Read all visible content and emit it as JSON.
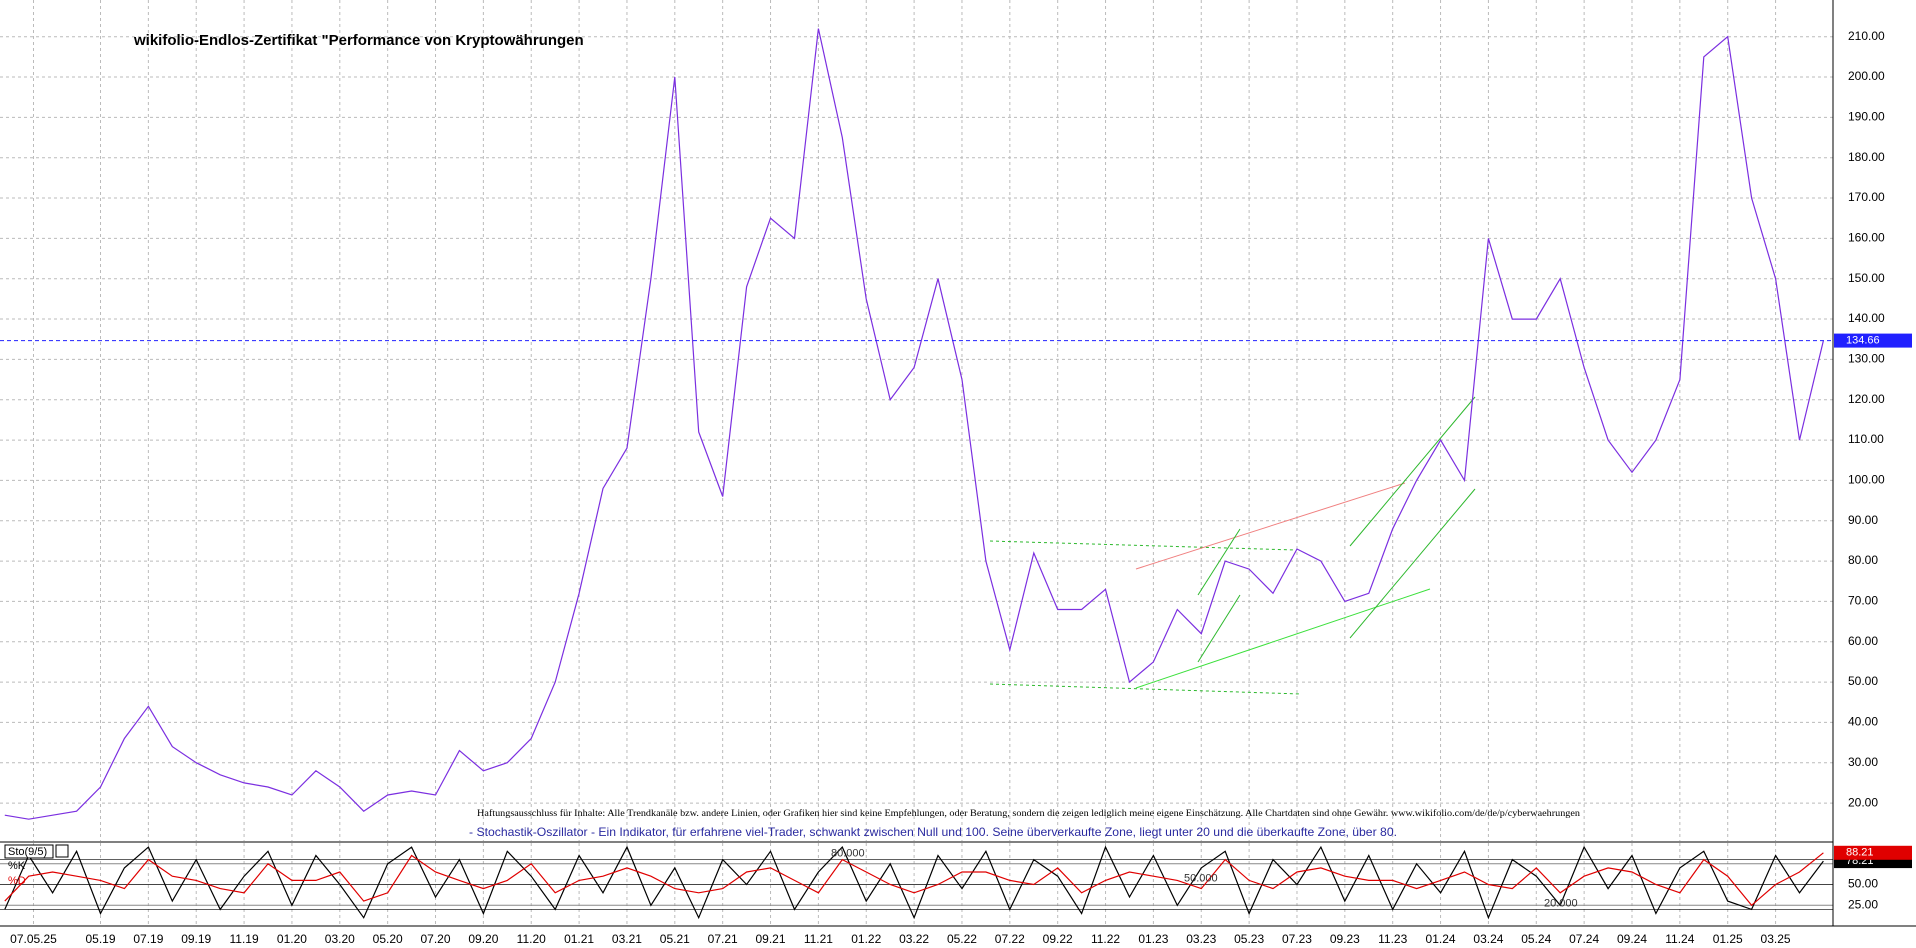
{
  "chart_data": [
    {
      "type": "line",
      "title": "wikifolio-Endlos-Zertifikat \"Performance von Kryptowährungen",
      "x": [
        -4,
        -3,
        -2,
        -1,
        0,
        1,
        2,
        3,
        4,
        5,
        6,
        7,
        8,
        9,
        10,
        11,
        12,
        13,
        14,
        15,
        16,
        17,
        18,
        19,
        20,
        21,
        22,
        23,
        24,
        25,
        26,
        27,
        28,
        29,
        30,
        31,
        32,
        33,
        34,
        35,
        36,
        37,
        38,
        39,
        40,
        41,
        42,
        43,
        44,
        45,
        46,
        47,
        48,
        49,
        50,
        51,
        52,
        53,
        54,
        55,
        56,
        57,
        58,
        59,
        60,
        61,
        62,
        63,
        64,
        65,
        66,
        67,
        68,
        69,
        70,
        71,
        72
      ],
      "series": [
        {
          "color": "#7b2fe0",
          "values": [
            17,
            16,
            17,
            18,
            24,
            36,
            44,
            34,
            30,
            27,
            25,
            24,
            22,
            28,
            24,
            18,
            22,
            23,
            22,
            33,
            28,
            30,
            36,
            50,
            72,
            98,
            108,
            150,
            200,
            112,
            96,
            148,
            165,
            160,
            212,
            185,
            145,
            120,
            128,
            150,
            125,
            80,
            58,
            82,
            68,
            68,
            73,
            50,
            55,
            68,
            62,
            80,
            78,
            72,
            83,
            80,
            70,
            72,
            88,
            100,
            110,
            100,
            160,
            140,
            140,
            150,
            128,
            110,
            102,
            110,
            125,
            205,
            210,
            170,
            150,
            110,
            134.66
          ]
        }
      ],
      "xlim": [
        -4.2,
        72.4
      ],
      "xticks": [
        {
          "value": -2.8,
          "label": "07.05.25"
        },
        {
          "value": 0,
          "label": "05.19"
        },
        {
          "value": 2,
          "label": "07.19"
        },
        {
          "value": 4,
          "label": "09.19"
        },
        {
          "value": 6,
          "label": "11.19"
        },
        {
          "value": 8,
          "label": "01.20"
        },
        {
          "value": 10,
          "label": "03.20"
        },
        {
          "value": 12,
          "label": "05.20"
        },
        {
          "value": 14,
          "label": "07.20"
        },
        {
          "value": 16,
          "label": "09.20"
        },
        {
          "value": 18,
          "label": "11.20"
        },
        {
          "value": 20,
          "label": "01.21"
        },
        {
          "value": 22,
          "label": "03.21"
        },
        {
          "value": 24,
          "label": "05.21"
        },
        {
          "value": 26,
          "label": "07.21"
        },
        {
          "value": 28,
          "label": "09.21"
        },
        {
          "value": 30,
          "label": "11.21"
        },
        {
          "value": 32,
          "label": "01.22"
        },
        {
          "value": 34,
          "label": "03.22"
        },
        {
          "value": 36,
          "label": "05.22"
        },
        {
          "value": 38,
          "label": "07.22"
        },
        {
          "value": 40,
          "label": "09.22"
        },
        {
          "value": 42,
          "label": "11.22"
        },
        {
          "value": 44,
          "label": "01.23"
        },
        {
          "value": 46,
          "label": "03.23"
        },
        {
          "value": 48,
          "label": "05.23"
        },
        {
          "value": 50,
          "label": "07.23"
        },
        {
          "value": 52,
          "label": "09.23"
        },
        {
          "value": 54,
          "label": "11.23"
        },
        {
          "value": 56,
          "label": "01.24"
        },
        {
          "value": 58,
          "label": "03.24"
        },
        {
          "value": 60,
          "label": "05.24"
        },
        {
          "value": 62,
          "label": "07.24"
        },
        {
          "value": 64,
          "label": "09.24"
        },
        {
          "value": 66,
          "label": "11.24"
        },
        {
          "value": 68,
          "label": "01.25"
        },
        {
          "value": 70,
          "label": "03.25"
        }
      ],
      "ylim": [
        10.6,
        219.1
      ],
      "yticks": [
        {
          "value": 20,
          "label": "20.00"
        },
        {
          "value": 30,
          "label": "30.00"
        },
        {
          "value": 40,
          "label": "40.00"
        },
        {
          "value": 50,
          "label": "50.00"
        },
        {
          "value": 60,
          "label": "60.00"
        },
        {
          "value": 70,
          "label": "70.00"
        },
        {
          "value": 80,
          "label": "80.00"
        },
        {
          "value": 90,
          "label": "90.00"
        },
        {
          "value": 100,
          "label": "100.00"
        },
        {
          "value": 110,
          "label": "110.00"
        },
        {
          "value": 120,
          "label": "120.00"
        },
        {
          "value": 130,
          "label": "130.00"
        },
        {
          "value": 140,
          "label": "140.00"
        },
        {
          "value": 150,
          "label": "150.00"
        },
        {
          "value": 160,
          "label": "160.00"
        },
        {
          "value": 170,
          "label": "170.00"
        },
        {
          "value": 180,
          "label": "180.00"
        },
        {
          "value": 190,
          "label": "190.00"
        },
        {
          "value": 200,
          "label": "200.00"
        },
        {
          "value": 210,
          "label": "210.00"
        }
      ],
      "grid": true,
      "annotations": [
        "Haftungsausschluss für Inhalte: Alle Trendkanäle bzw. andere Linien, oder Grafiken hier sind keine Empfehlungen, oder Beratung, sondern die zeigen lediglich meine eigene Einschätzung. Alle Chartdaten sind ohne Gewähr.  www.wikifolio.com/de/de/p/cyberwaehrungen",
        "- Stochastik-Oszillator - Ein Indikator, für erfahrene viel-Trader, schwankt zwischen Null und 100. Seine überverkaufte Zone, liegt unter 20 und die überkaufte Zone, über 80."
      ]
    },
    {
      "type": "line",
      "title": "Sto(9/5)",
      "x": [
        -4,
        -3,
        -2,
        -1,
        0,
        1,
        2,
        3,
        4,
        5,
        6,
        7,
        8,
        9,
        10,
        11,
        12,
        13,
        14,
        15,
        16,
        17,
        18,
        19,
        20,
        21,
        22,
        23,
        24,
        25,
        26,
        27,
        28,
        29,
        30,
        31,
        32,
        33,
        34,
        35,
        36,
        37,
        38,
        39,
        40,
        41,
        42,
        43,
        44,
        45,
        46,
        47,
        48,
        49,
        50,
        51,
        52,
        53,
        54,
        55,
        56,
        57,
        58,
        59,
        60,
        61,
        62,
        63,
        64,
        65,
        66,
        67,
        68,
        69,
        70,
        71,
        72
      ],
      "series": [
        {
          "name": "%K",
          "color": "#000000",
          "values": [
            20,
            85,
            40,
            90,
            15,
            70,
            95,
            30,
            80,
            20,
            60,
            90,
            25,
            85,
            50,
            10,
            75,
            95,
            35,
            80,
            15,
            90,
            60,
            20,
            85,
            40,
            95,
            25,
            70,
            10,
            80,
            50,
            90,
            20,
            65,
            95,
            30,
            75,
            10,
            85,
            45,
            90,
            20,
            80,
            60,
            15,
            95,
            35,
            85,
            25,
            70,
            90,
            15,
            80,
            50,
            95,
            30,
            85,
            20,
            75,
            40,
            90,
            10,
            80,
            60,
            25,
            95,
            45,
            85,
            15,
            70,
            90,
            30,
            20,
            85,
            40,
            78.21
          ]
        },
        {
          "name": "%D",
          "color": "#e00000",
          "values": [
            30,
            60,
            65,
            60,
            55,
            45,
            80,
            60,
            55,
            45,
            40,
            75,
            55,
            55,
            65,
            30,
            40,
            85,
            65,
            55,
            45,
            55,
            75,
            40,
            55,
            60,
            70,
            60,
            45,
            40,
            45,
            65,
            70,
            55,
            40,
            80,
            65,
            50,
            40,
            50,
            65,
            65,
            55,
            50,
            70,
            40,
            55,
            65,
            60,
            55,
            45,
            80,
            55,
            45,
            65,
            70,
            60,
            55,
            55,
            45,
            55,
            65,
            50,
            45,
            70,
            40,
            60,
            70,
            65,
            50,
            40,
            80,
            60,
            25,
            50,
            65,
            88.21
          ]
        }
      ],
      "xlim": [
        -4.2,
        72.4
      ],
      "ylim": [
        0,
        100
      ],
      "yticks": [
        {
          "value": 25,
          "label": "25.00"
        },
        {
          "value": 50,
          "label": "50.00"
        },
        {
          "value": 75,
          "label": "75.00"
        }
      ],
      "levels": [
        {
          "value": 80,
          "label": "80.000"
        },
        {
          "value": 50,
          "label": "50.000"
        },
        {
          "value": 20,
          "label": "20.000"
        }
      ]
    }
  ]
}
